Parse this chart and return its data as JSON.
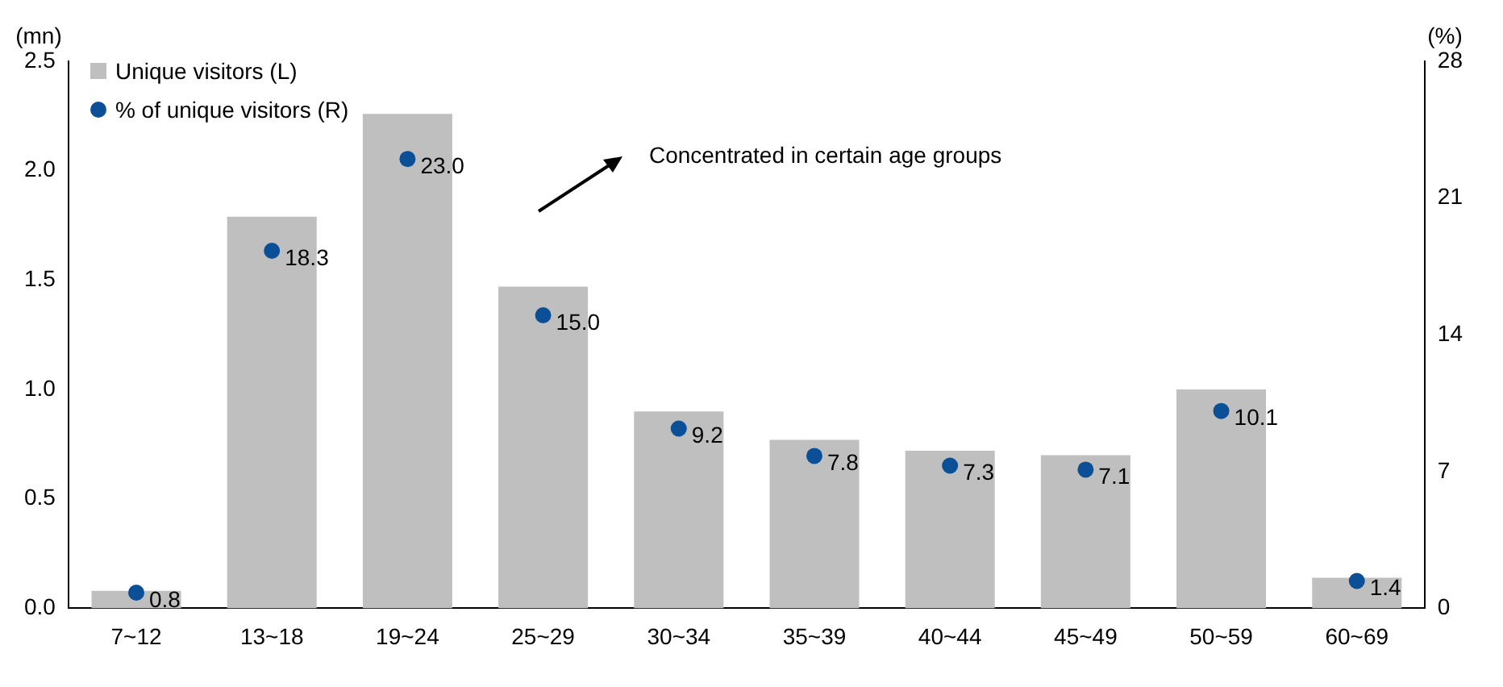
{
  "chart_data": {
    "type": "bar",
    "ylabel": "(mn)",
    "y2label": "(%)",
    "categories": [
      "7~12",
      "13~18",
      "19~24",
      "25~29",
      "30~34",
      "35~39",
      "40~44",
      "45~49",
      "50~59",
      "60~69"
    ],
    "series": [
      {
        "name": "Unique visitors (L)",
        "color": "#bfbfbf",
        "values": [
          0.08,
          1.79,
          2.26,
          1.47,
          0.9,
          0.77,
          0.72,
          0.7,
          1.0,
          0.14
        ]
      },
      {
        "name": "% of unique visitors (R)",
        "type": "scatter",
        "axis": "y2",
        "color": "#0b4f96",
        "x": [
          "7~12",
          "13~18",
          "19~24",
          "25~29",
          "30~34",
          "35~39",
          "40~44",
          "45~49",
          "50~59",
          "60~69"
        ],
        "values": [
          0.8,
          18.3,
          23.0,
          15.0,
          9.2,
          7.8,
          7.3,
          7.1,
          10.1,
          1.4
        ],
        "value_labels": [
          "0.8",
          "18.3",
          "23.0",
          "15.0",
          "9.2",
          "7.8",
          "7.3",
          "7.1",
          "10.1",
          "1.4"
        ]
      }
    ],
    "ylim": [
      0,
      2.5
    ],
    "yticks": [
      {
        "value": 0,
        "label": "0.0"
      },
      {
        "value": 0.5,
        "label": "0.5"
      },
      {
        "value": 1,
        "label": "1.0"
      },
      {
        "value": 1.5,
        "label": "1.5"
      },
      {
        "value": 2,
        "label": "2.0"
      },
      {
        "value": 2.5,
        "label": "2.5"
      }
    ],
    "y2lim": [
      0,
      28
    ],
    "y2ticks": [
      0,
      7,
      14,
      21,
      28
    ],
    "grid": false,
    "legend": "top left",
    "marker": "circle",
    "annotations": [
      "Concentrated in certain age groups"
    ]
  }
}
